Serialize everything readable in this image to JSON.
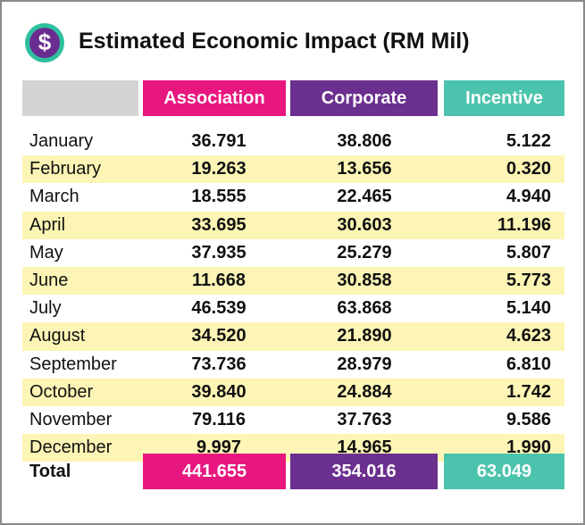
{
  "header": {
    "title": "Estimated Economic Impact (RM Mil)",
    "icon": "$"
  },
  "table": {
    "columns": [
      "Association",
      "Corporate",
      "Incentive"
    ],
    "rows": [
      [
        "January",
        "36.791",
        "38.806",
        "5.122"
      ],
      [
        "February",
        "19.263",
        "13.656",
        "0.320"
      ],
      [
        "March",
        "18.555",
        "22.465",
        "4.940"
      ],
      [
        "April",
        "33.695",
        "30.603",
        "11.196"
      ],
      [
        "May",
        "37.935",
        "25.279",
        "5.807"
      ],
      [
        "June",
        "11.668",
        "30.858",
        "5.773"
      ],
      [
        "July",
        "46.539",
        "63.868",
        "5.140"
      ],
      [
        "August",
        "34.520",
        "21.890",
        "4.623"
      ],
      [
        "September",
        "73.736",
        "28.979",
        "6.810"
      ],
      [
        "October",
        "39.840",
        "24.884",
        "1.742"
      ],
      [
        "November",
        "79.116",
        "37.763",
        "9.586"
      ],
      [
        "December",
        "9.997",
        "14.965",
        "1.990"
      ]
    ],
    "total": [
      "Total",
      "441.655",
      "354.016",
      "63.049"
    ]
  }
}
